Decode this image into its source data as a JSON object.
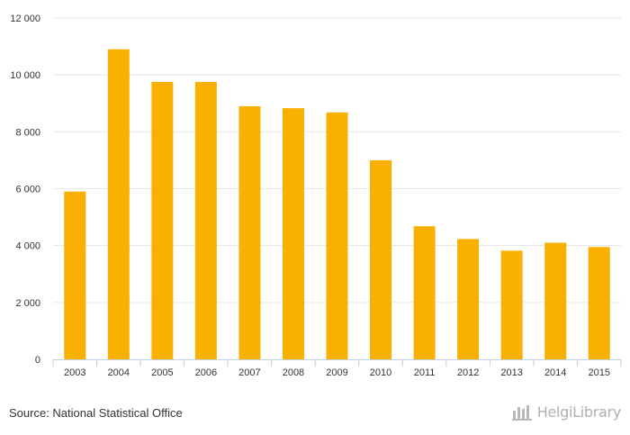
{
  "chart_data": {
    "type": "bar",
    "categories": [
      "2003",
      "2004",
      "2005",
      "2006",
      "2007",
      "2008",
      "2009",
      "2010",
      "2011",
      "2012",
      "2013",
      "2014",
      "2015"
    ],
    "values": [
      5900,
      10900,
      9750,
      9750,
      8900,
      8830,
      8680,
      7000,
      4680,
      4230,
      3820,
      4100,
      3950
    ],
    "ylim": [
      0,
      12000
    ],
    "y_ticks": [
      0,
      2000,
      4000,
      6000,
      8000,
      10000,
      12000
    ],
    "y_tick_labels": [
      "0",
      "2 000",
      "4 000",
      "6 000",
      "8 000",
      "10 000",
      "12 000"
    ],
    "grid": true,
    "bar_color": "#f9b000"
  },
  "footer": {
    "source": "Source: National Statistical Office",
    "brand": "HelgiLibrary"
  },
  "icons": {
    "brand_icon": "helgi-library-logo-icon"
  }
}
